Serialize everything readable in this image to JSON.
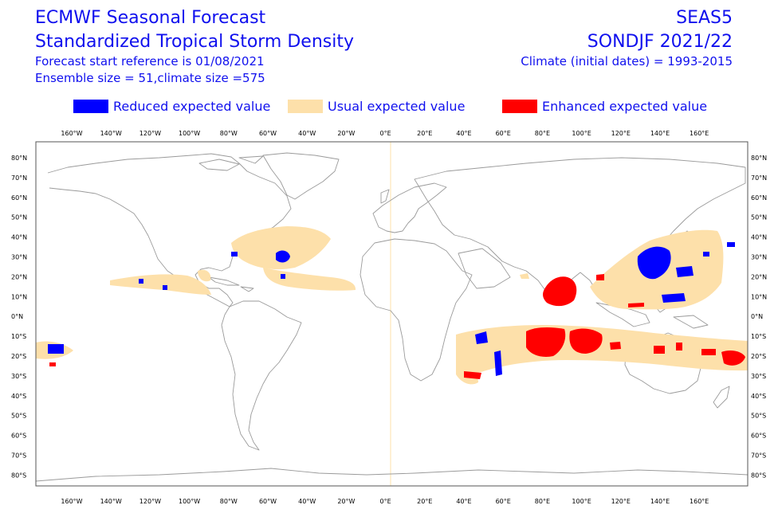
{
  "header": {
    "title_line1": "ECMWF Seasonal Forecast",
    "title_line2": "Standardized Tropical Storm Density",
    "start_reference": "Forecast start reference is 01/08/2021",
    "ensemble": "Ensemble size = 51,climate size =575",
    "system": "SEAS5",
    "period": "SONDJF 2021/22",
    "climate": "Climate (initial dates) = 1993-2015"
  },
  "legend": [
    {
      "label": "Reduced expected value",
      "color": "#0000ff"
    },
    {
      "label": "Usual expected value",
      "color": "#fde0aa"
    },
    {
      "label": "Enhanced expected value",
      "color": "#ff0000"
    }
  ],
  "map": {
    "lon_labels": [
      "160°W",
      "140°W",
      "120°W",
      "100°W",
      "80°W",
      "60°W",
      "40°W",
      "20°W",
      "0°E",
      "20°E",
      "40°E",
      "60°E",
      "80°E",
      "100°E",
      "120°E",
      "140°E",
      "160°E"
    ],
    "lat_labels": [
      "80°N",
      "70°N",
      "60°N",
      "50°N",
      "40°N",
      "30°N",
      "20°N",
      "10°N",
      "0°N",
      "10°S",
      "20°S",
      "30°S",
      "40°S",
      "50°S",
      "60°S",
      "70°S",
      "80°S"
    ],
    "colors": {
      "reduced": "#0000ff",
      "usual": "#fde0aa",
      "enhanced": "#ff0000",
      "coast": "#9a9a9a",
      "frame": "#555555"
    }
  }
}
